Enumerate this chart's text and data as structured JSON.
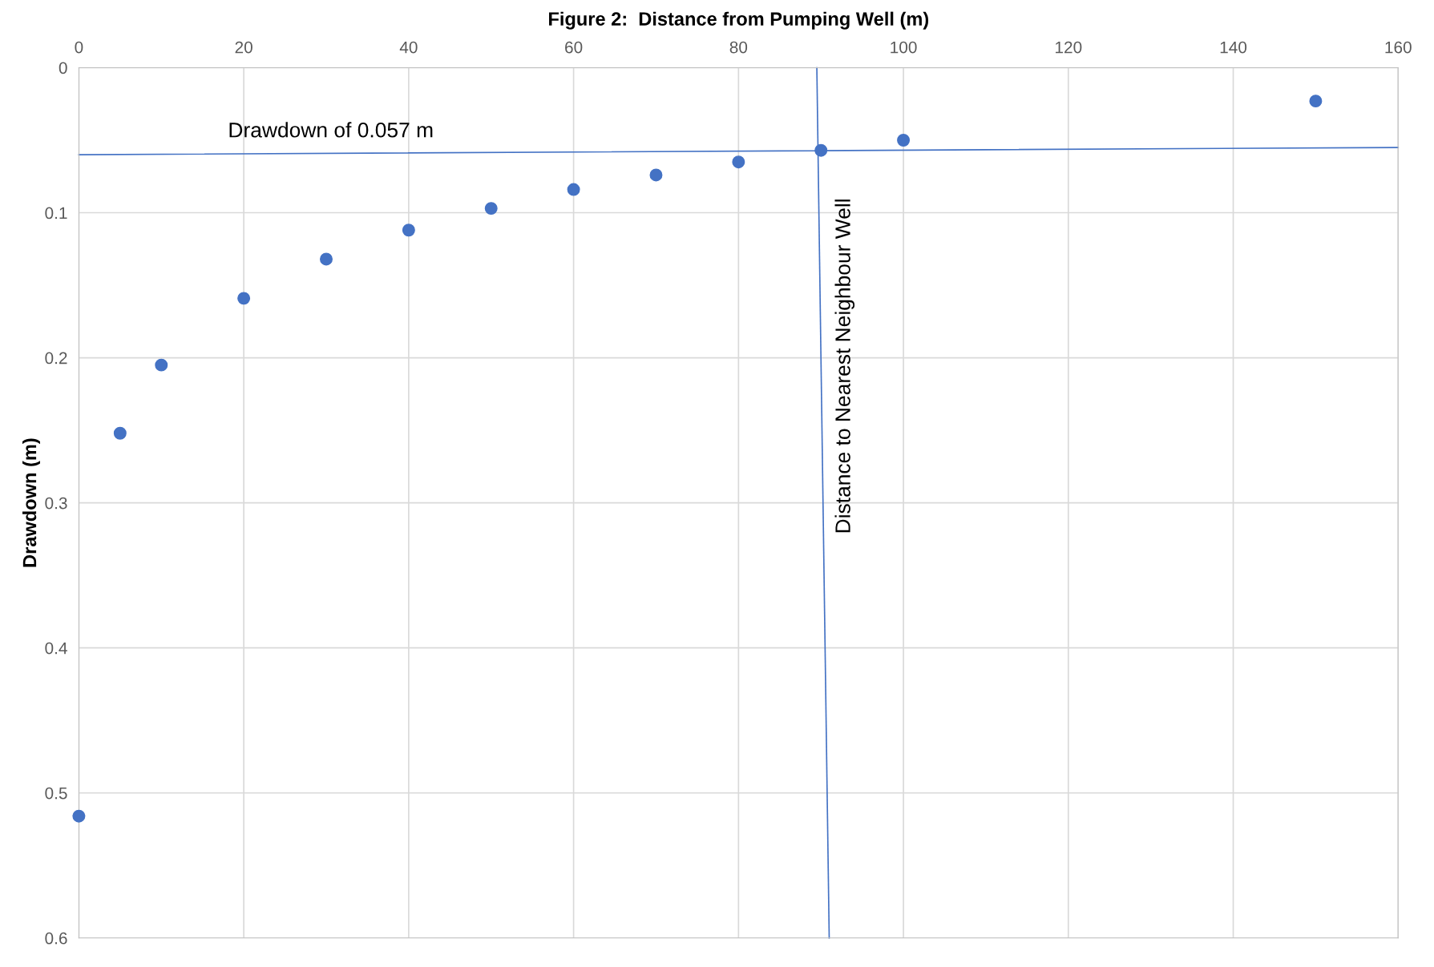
{
  "chart_data": {
    "type": "scatter",
    "xlabel": "Figure 2:  Distance from Pumping Well (m)",
    "ylabel": "Drawdown (m)",
    "xlim": [
      0,
      160
    ],
    "xticks": [
      0,
      20,
      40,
      60,
      80,
      100,
      120,
      140,
      160
    ],
    "ylim": [
      0.6,
      0
    ],
    "yticks": [
      0,
      0.1,
      0.2,
      0.3,
      0.4,
      0.5,
      0.6
    ],
    "grid": true,
    "series": [
      {
        "color": "#4472c4",
        "marker": "circle",
        "x": [
          0,
          5,
          10,
          20,
          30,
          40,
          50,
          60,
          70,
          80,
          90,
          100,
          150
        ],
        "values": [
          0.516,
          0.252,
          0.205,
          0.159,
          0.132,
          0.112,
          0.097,
          0.084,
          0.074,
          0.065,
          0.057,
          0.05,
          0.023
        ]
      },
      {
        "type": "line",
        "color": "#4472c4",
        "marker": "none",
        "x": [
          0,
          160
        ],
        "values": [
          0.06,
          0.055
        ]
      },
      {
        "type": "line",
        "color": "#4472c4",
        "marker": "none",
        "x": [
          89.5,
          91
        ],
        "values": [
          0,
          0.6
        ]
      }
    ],
    "annotations": [
      "Drawdown of 0.057 m",
      "Distance to Nearest Neighbour Well"
    ]
  }
}
